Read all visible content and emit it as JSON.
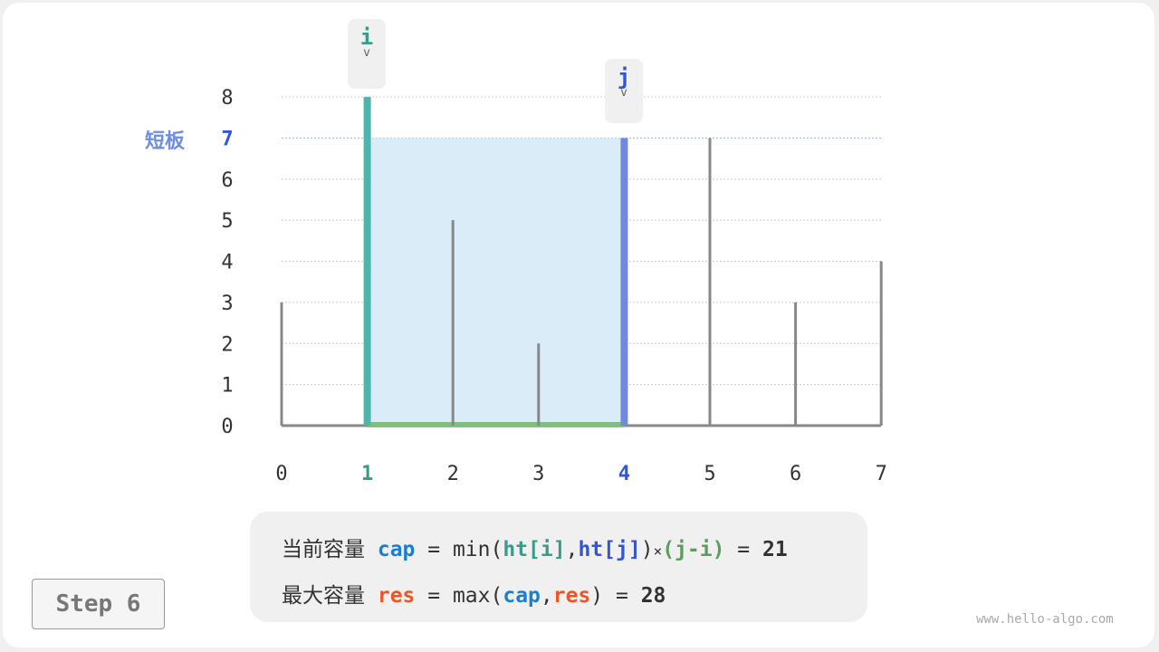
{
  "heights": [
    3,
    8,
    5,
    2,
    7,
    7,
    3,
    4
  ],
  "y_ticks": [
    "0",
    "1",
    "2",
    "3",
    "4",
    "5",
    "6",
    "7",
    "8"
  ],
  "x_ticks": [
    "0",
    "1",
    "2",
    "3",
    "4",
    "5",
    "6",
    "7"
  ],
  "i_index": 1,
  "j_index": 4,
  "pointer_i": "i",
  "pointer_j": "j",
  "arrow": "v",
  "short_board_label": "短板",
  "colors": {
    "i": "#4db6ac",
    "j": "#7088de",
    "water": "#dbecf9",
    "width": "#7fbf7f",
    "bar": "#888888",
    "cap": "#1a7fd1",
    "res": "#ee5522",
    "ht_i": "#3a9b8b",
    "ht_j": "#3355d6",
    "ji": "#5a9e5a"
  },
  "formula": {
    "line1": {
      "label": "当前容量",
      "cap": "cap",
      "eq": " = min(",
      "ht_i": "ht[i]",
      "comma": ",",
      "ht_j": "ht[j]",
      "close": ")",
      "times": "×",
      "ji": "(j-i)",
      "eq2": " = ",
      "value": "21"
    },
    "line2": {
      "label": "最大容量",
      "res": "res",
      "eq": " = max(",
      "cap": "cap",
      "comma": ",",
      "res2": "res",
      "close": ")",
      "eq2": " = ",
      "value": "28"
    }
  },
  "step_label": "Step 6",
  "watermark": "www.hello-algo.com"
}
